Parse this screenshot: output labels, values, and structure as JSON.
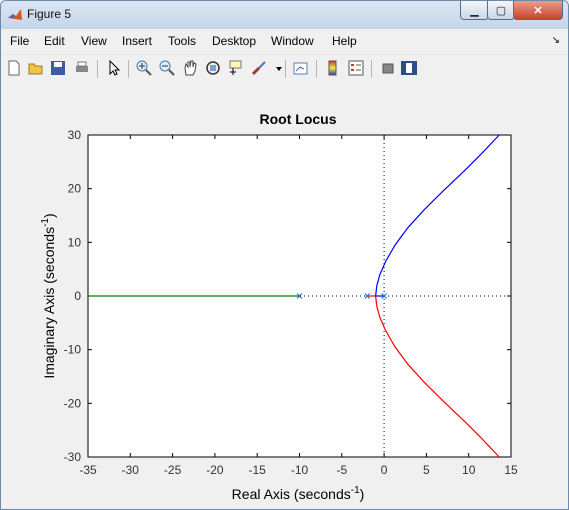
{
  "window": {
    "title": "Figure 5"
  },
  "menu": [
    "File",
    "Edit",
    "View",
    "Insert",
    "Tools",
    "Desktop",
    "Window",
    "Help"
  ],
  "toolbar_icons": [
    "new-figure-icon",
    "open-file-icon",
    "save-icon",
    "print-icon",
    "edit-plot-arrow-icon",
    "zoom-in-icon",
    "zoom-out-icon",
    "pan-hand-icon",
    "rotate-3d-icon",
    "data-cursor-icon",
    "brush-icon",
    "brush-dropdown-icon",
    "link-plot-icon",
    "colorbar-icon",
    "legend-icon",
    "hide-plot-tools-icon",
    "show-plot-tools-icon"
  ],
  "chart_data": {
    "type": "line",
    "title": "Root Locus",
    "xlabel": "Real Axis (seconds",
    "xlabel_exponent": "-1",
    "xlabel_suffix": ")",
    "ylabel": "Imaginary Axis (seconds",
    "ylabel_exponent": "-1",
    "ylabel_suffix": ")",
    "xlim": [
      -35,
      15
    ],
    "ylim": [
      -30,
      30
    ],
    "xticks": [
      -35,
      -30,
      -25,
      -20,
      -15,
      -10,
      -5,
      0,
      5,
      10,
      15
    ],
    "yticks": [
      -30,
      -20,
      -10,
      0,
      10,
      20,
      30
    ],
    "grid": false,
    "poles": [
      [
        -10,
        0
      ],
      [
        -2,
        0
      ],
      [
        0,
        0
      ]
    ],
    "series": [
      {
        "color": "#0000ff",
        "x": [
          -1,
          -0.85,
          -0.5,
          0.2,
          1.3,
          2.8,
          4.7,
          7,
          9.6,
          11.5,
          13.6
        ],
        "y": [
          0,
          2,
          4,
          6.5,
          9.5,
          12.7,
          16,
          19.6,
          23.5,
          26.5,
          30
        ]
      },
      {
        "color": "#ff0000",
        "x": [
          -1,
          -0.85,
          -0.5,
          0.2,
          1.3,
          2.8,
          4.7,
          7,
          9.6,
          11.5,
          13.6
        ],
        "y": [
          0,
          -2,
          -4,
          -6.5,
          -9.5,
          -12.7,
          -16,
          -19.6,
          -23.5,
          -26.5,
          -30
        ]
      },
      {
        "color": "#007f00",
        "x": [
          -10,
          -35
        ],
        "y": [
          0,
          0
        ]
      },
      {
        "color": "#0000ff",
        "x": [
          0,
          -1
        ],
        "y": [
          0,
          0
        ]
      },
      {
        "color": "#ff0000",
        "x": [
          -2,
          -1
        ],
        "y": [
          0,
          0
        ]
      }
    ]
  }
}
